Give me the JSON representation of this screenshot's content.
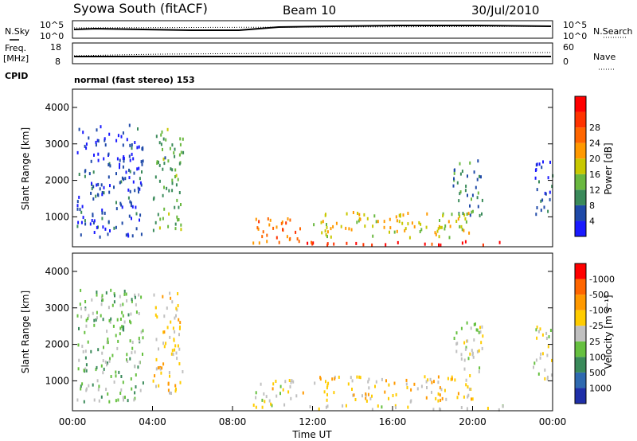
{
  "header": {
    "station": "Syowa South (fitACF)",
    "beam": "Beam 10",
    "date": "30/Jul/2010"
  },
  "noise_panel": {
    "left_label": "N.Sky",
    "right_label": "N.Search",
    "y_ticks": [
      "10^5",
      "10^0"
    ],
    "right_ticks": [
      "10^5",
      "10^0"
    ]
  },
  "freq_panel": {
    "left_label": "Freq.",
    "left_unit": "[MHz]",
    "right_label": "Nave",
    "y_ticks": [
      "18",
      "8"
    ],
    "right_ticks": [
      "60",
      "0"
    ]
  },
  "cpid": {
    "label": "CPID",
    "mode": "normal (fast stereo) 153"
  },
  "power_panel": {
    "ylabel": "Slant Range [km]",
    "y_ticks": [
      "1000",
      "2000",
      "3000",
      "4000"
    ],
    "colorbar_label": "Power [dB]",
    "colorbar_ticks": [
      "4",
      "8",
      "12",
      "16",
      "20",
      "24",
      "28"
    ],
    "colors": [
      "#1a1aff",
      "#1f4aa8",
      "#3a8a5a",
      "#6ab840",
      "#c8c800",
      "#ff9900",
      "#ff6600",
      "#ff3300",
      "#ff0000"
    ]
  },
  "velocity_panel": {
    "ylabel": "Slant Range [km]",
    "y_ticks": [
      "1000",
      "2000",
      "3000",
      "4000"
    ],
    "colorbar_label": "Velocity [m s⁻¹]",
    "colorbar_ticks": [
      "1000",
      "500",
      "100",
      "25",
      "-25",
      "-100",
      "-500",
      "-1000"
    ],
    "colors": [
      "#1f2fa8",
      "#2f6ab0",
      "#3a8a5a",
      "#66c040",
      "#c0c0c0",
      "#ffcc00",
      "#ff9900",
      "#ff6600",
      "#ff0000"
    ]
  },
  "x_axis": {
    "label": "Time UT",
    "ticks": [
      "00:00",
      "04:00",
      "08:00",
      "12:00",
      "16:00",
      "20:00",
      "00:00"
    ]
  },
  "chart_data": {
    "type": "heatmap",
    "title": "Syowa South (fitACF)",
    "xlabel": "Time UT",
    "ylabel": "Slant Range [km]",
    "x_range_hours": [
      0,
      24
    ],
    "y_range_km": [
      180,
      4500
    ],
    "power_range_db": [
      0,
      30
    ],
    "velocity_range_ms": [
      -1000,
      1000
    ],
    "series": [
      {
        "name": "Power [dB]",
        "regions": [
          {
            "t": [
              0.2,
              3.5
            ],
            "r": [
              400,
              3500
            ],
            "level": 4
          },
          {
            "t": [
              4.0,
              5.5
            ],
            "r": [
              600,
              3400
            ],
            "level": 10
          },
          {
            "t": [
              9.0,
              11.5
            ],
            "r": [
              250,
              1000
            ],
            "level": 22
          },
          {
            "t": [
              11.5,
              22.0
            ],
            "r": [
              180,
              300
            ],
            "level": 26
          },
          {
            "t": [
              12.0,
              20.0
            ],
            "r": [
              400,
              1100
            ],
            "level": 16
          },
          {
            "t": [
              19.0,
              20.5
            ],
            "r": [
              1000,
              2600
            ],
            "level": 8
          },
          {
            "t": [
              23.0,
              24.0
            ],
            "r": [
              1000,
              2500
            ],
            "level": 4
          }
        ]
      },
      {
        "name": "Velocity [m s⁻¹]",
        "regions": [
          {
            "t": [
              0.2,
              3.5
            ],
            "r": [
              400,
              3500
            ],
            "value": 200
          },
          {
            "t": [
              4.0,
              5.5
            ],
            "r": [
              600,
              3400
            ],
            "value": -150
          },
          {
            "t": [
              9.0,
              11.5
            ],
            "r": [
              250,
              1000
            ],
            "value": -100
          },
          {
            "t": [
              11.5,
              22.0
            ],
            "r": [
              180,
              300
            ],
            "value": -100
          },
          {
            "t": [
              12.0,
              20.0
            ],
            "r": [
              400,
              1100
            ],
            "value": -200
          },
          {
            "t": [
              19.0,
              20.5
            ],
            "r": [
              1000,
              2600
            ],
            "value": 50
          },
          {
            "t": [
              23.0,
              24.0
            ],
            "r": [
              1000,
              2500
            ],
            "value": -50
          }
        ]
      }
    ]
  }
}
